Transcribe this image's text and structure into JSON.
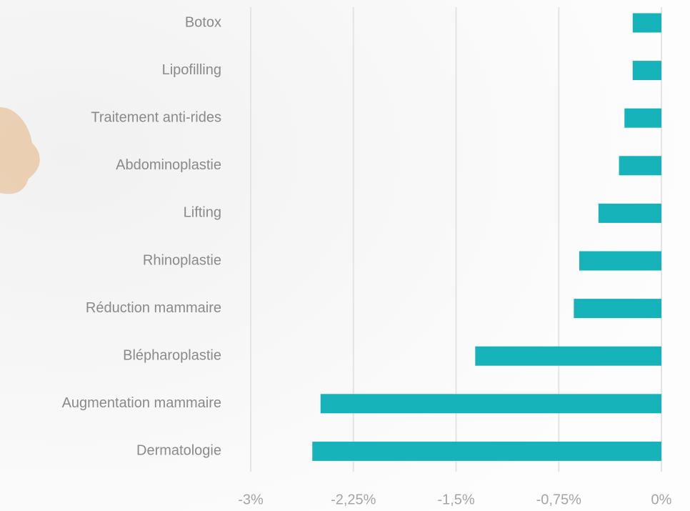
{
  "chart_data": {
    "type": "bar",
    "orientation": "horizontal",
    "categories": [
      "Botox",
      "Lipofilling",
      "Traitement anti-rides",
      "Abdominoplastie",
      "Lifting",
      "Rhinoplastie",
      "Réduction mammaire",
      "Blépharoplastie",
      "Augmentation mammaire",
      "Dermatologie"
    ],
    "values": [
      -0.21,
      -0.21,
      -0.27,
      -0.31,
      -0.46,
      -0.6,
      -0.64,
      -1.36,
      -2.49,
      -2.55
    ],
    "color": "#17b3bb",
    "xlim": [
      -3,
      0
    ],
    "xticks": [
      {
        "value": -3,
        "label": "-3%"
      },
      {
        "value": -2.25,
        "label": "-2,25%"
      },
      {
        "value": -1.5,
        "label": "-1,5%"
      },
      {
        "value": -0.75,
        "label": "-0,75%"
      },
      {
        "value": 0,
        "label": "0%"
      }
    ],
    "grid": true
  }
}
